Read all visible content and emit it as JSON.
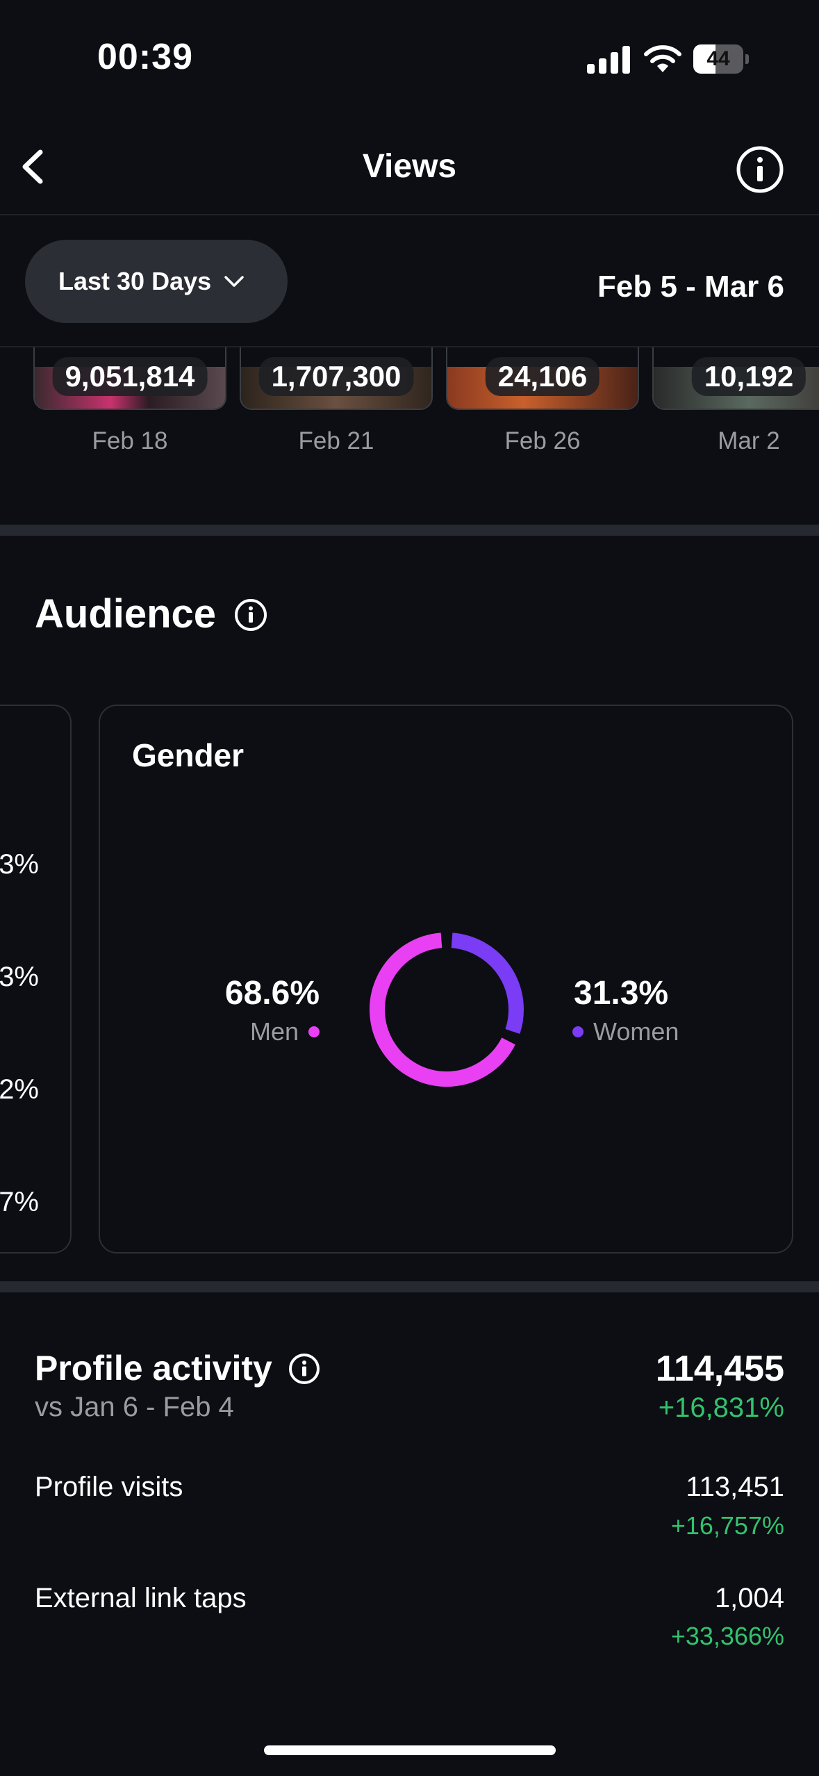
{
  "status_bar": {
    "time": "00:39",
    "battery": "44",
    "battery_level": 0.44
  },
  "nav": {
    "title": "Views"
  },
  "filter": {
    "period_label": "Last 30 Days",
    "date_range": "Feb 5 - Mar 6"
  },
  "top_content": [
    {
      "count": "9,051,814",
      "date": "Feb 18"
    },
    {
      "count": "1,707,300",
      "date": "Feb 21"
    },
    {
      "count": "24,106",
      "date": "Feb 26"
    },
    {
      "count": "10,192",
      "date": "Mar 2"
    }
  ],
  "audience": {
    "title": "Audience",
    "partial_card_values": [
      "3%",
      "3%",
      "2%",
      "7%"
    ],
    "gender": {
      "title": "Gender",
      "men": {
        "value": "68.6%",
        "label": "Men",
        "color": "#e940f3",
        "fraction": 0.686
      },
      "women": {
        "value": "31.3%",
        "label": "Women",
        "color": "#7a3cf5",
        "fraction": 0.313
      }
    }
  },
  "profile_activity": {
    "title": "Profile activity",
    "comparison": "vs Jan 6 - Feb 4",
    "total": "114,455",
    "total_change": "+16,831%",
    "rows": [
      {
        "label": "Profile visits",
        "value": "113,451",
        "change": "+16,757%"
      },
      {
        "label": "External link taps",
        "value": "1,004",
        "change": "+33,366%"
      }
    ]
  }
}
